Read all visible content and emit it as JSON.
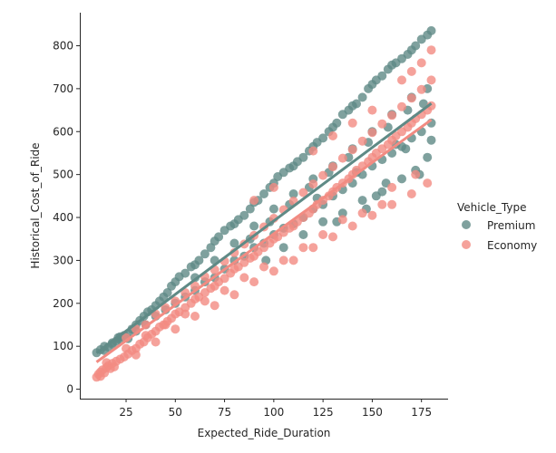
{
  "chart_data": {
    "type": "scatter",
    "title": "",
    "xlabel": "Expected_Ride_Duration",
    "ylabel": "Historical_Cost_of_Ride",
    "xlim": [
      1.5,
      188.5
    ],
    "ylim": [
      -22,
      877
    ],
    "xticks": [
      25,
      50,
      75,
      100,
      125,
      150,
      175
    ],
    "yticks": [
      0,
      100,
      200,
      300,
      400,
      500,
      600,
      700,
      800
    ],
    "grid": false,
    "legend": {
      "title": "Vehicle_Type",
      "placement": "center-right"
    },
    "series": [
      {
        "name": "Premium",
        "color": "#5f8a86",
        "regression": {
          "slope": 3.42,
          "intercept": 50
        },
        "points": [
          [
            10,
            85
          ],
          [
            12,
            92
          ],
          [
            14,
            100
          ],
          [
            16,
            98
          ],
          [
            18,
            108
          ],
          [
            20,
            112
          ],
          [
            21,
            120
          ],
          [
            22,
            115
          ],
          [
            24,
            125
          ],
          [
            26,
            130
          ],
          [
            28,
            140
          ],
          [
            30,
            150
          ],
          [
            32,
            160
          ],
          [
            34,
            170
          ],
          [
            36,
            180
          ],
          [
            38,
            185
          ],
          [
            40,
            195
          ],
          [
            42,
            205
          ],
          [
            44,
            215
          ],
          [
            46,
            225
          ],
          [
            48,
            240
          ],
          [
            50,
            250
          ],
          [
            52,
            262
          ],
          [
            55,
            270
          ],
          [
            58,
            285
          ],
          [
            60,
            290
          ],
          [
            62,
            300
          ],
          [
            65,
            315
          ],
          [
            68,
            330
          ],
          [
            70,
            345
          ],
          [
            72,
            355
          ],
          [
            75,
            370
          ],
          [
            78,
            380
          ],
          [
            80,
            385
          ],
          [
            82,
            395
          ],
          [
            85,
            405
          ],
          [
            88,
            420
          ],
          [
            90,
            435
          ],
          [
            92,
            440
          ],
          [
            95,
            455
          ],
          [
            98,
            470
          ],
          [
            100,
            480
          ],
          [
            102,
            495
          ],
          [
            105,
            505
          ],
          [
            108,
            515
          ],
          [
            110,
            520
          ],
          [
            112,
            530
          ],
          [
            115,
            540
          ],
          [
            118,
            555
          ],
          [
            120,
            565
          ],
          [
            122,
            575
          ],
          [
            125,
            585
          ],
          [
            128,
            600
          ],
          [
            130,
            610
          ],
          [
            132,
            620
          ],
          [
            135,
            640
          ],
          [
            138,
            650
          ],
          [
            140,
            660
          ],
          [
            142,
            665
          ],
          [
            145,
            680
          ],
          [
            148,
            700
          ],
          [
            150,
            710
          ],
          [
            152,
            720
          ],
          [
            155,
            730
          ],
          [
            158,
            745
          ],
          [
            160,
            755
          ],
          [
            162,
            760
          ],
          [
            165,
            770
          ],
          [
            168,
            780
          ],
          [
            170,
            790
          ],
          [
            172,
            800
          ],
          [
            175,
            815
          ],
          [
            178,
            825
          ],
          [
            180,
            835
          ],
          [
            14,
            90
          ],
          [
            18,
            105
          ],
          [
            22,
            122
          ],
          [
            26,
            118
          ],
          [
            30,
            135
          ],
          [
            35,
            150
          ],
          [
            40,
            170
          ],
          [
            45,
            185
          ],
          [
            50,
            200
          ],
          [
            55,
            215
          ],
          [
            60,
            230
          ],
          [
            65,
            250
          ],
          [
            70,
            260
          ],
          [
            75,
            280
          ],
          [
            80,
            300
          ],
          [
            85,
            310
          ],
          [
            90,
            330
          ],
          [
            95,
            340
          ],
          [
            100,
            360
          ],
          [
            105,
            375
          ],
          [
            110,
            385
          ],
          [
            115,
            400
          ],
          [
            120,
            420
          ],
          [
            125,
            430
          ],
          [
            130,
            450
          ],
          [
            135,
            465
          ],
          [
            140,
            480
          ],
          [
            145,
            500
          ],
          [
            150,
            520
          ],
          [
            155,
            535
          ],
          [
            160,
            550
          ],
          [
            165,
            565
          ],
          [
            170,
            585
          ],
          [
            175,
            600
          ],
          [
            180,
            620
          ],
          [
            60,
            260
          ],
          [
            70,
            300
          ],
          [
            80,
            340
          ],
          [
            90,
            380
          ],
          [
            100,
            420
          ],
          [
            110,
            455
          ],
          [
            120,
            490
          ],
          [
            130,
            520
          ],
          [
            140,
            560
          ],
          [
            150,
            600
          ],
          [
            160,
            640
          ],
          [
            170,
            680
          ],
          [
            178,
            700
          ],
          [
            96,
            300
          ],
          [
            105,
            330
          ],
          [
            115,
            360
          ],
          [
            125,
            390
          ],
          [
            135,
            410
          ],
          [
            145,
            440
          ],
          [
            155,
            460
          ],
          [
            165,
            490
          ],
          [
            172,
            510
          ],
          [
            178,
            540
          ],
          [
            88,
            350
          ],
          [
            98,
            390
          ],
          [
            108,
            430
          ],
          [
            118,
            470
          ],
          [
            128,
            505
          ],
          [
            138,
            540
          ],
          [
            148,
            575
          ],
          [
            158,
            610
          ],
          [
            168,
            650
          ],
          [
            176,
            665
          ],
          [
            122,
            445
          ],
          [
            142,
            505
          ],
          [
            162,
            570
          ],
          [
            152,
            450
          ],
          [
            167,
            560
          ],
          [
            174,
            500
          ],
          [
            180,
            580
          ],
          [
            132,
            390
          ],
          [
            147,
            420
          ],
          [
            157,
            480
          ]
        ]
      },
      {
        "name": "Economy",
        "color": "#f28b82",
        "regression": {
          "slope": 3.32,
          "intercept": 30
        },
        "points": [
          [
            10,
            28
          ],
          [
            11,
            35
          ],
          [
            12,
            40
          ],
          [
            13,
            45
          ],
          [
            14,
            38
          ],
          [
            15,
            50
          ],
          [
            16,
            55
          ],
          [
            17,
            48
          ],
          [
            18,
            60
          ],
          [
            19,
            52
          ],
          [
            20,
            65
          ],
          [
            22,
            70
          ],
          [
            24,
            75
          ],
          [
            26,
            82
          ],
          [
            28,
            90
          ],
          [
            30,
            95
          ],
          [
            32,
            105
          ],
          [
            34,
            110
          ],
          [
            36,
            120
          ],
          [
            38,
            128
          ],
          [
            40,
            135
          ],
          [
            42,
            145
          ],
          [
            44,
            150
          ],
          [
            46,
            158
          ],
          [
            48,
            165
          ],
          [
            50,
            175
          ],
          [
            52,
            180
          ],
          [
            55,
            190
          ],
          [
            58,
            200
          ],
          [
            60,
            210
          ],
          [
            62,
            215
          ],
          [
            65,
            225
          ],
          [
            68,
            235
          ],
          [
            70,
            240
          ],
          [
            72,
            250
          ],
          [
            75,
            258
          ],
          [
            78,
            270
          ],
          [
            80,
            280
          ],
          [
            82,
            285
          ],
          [
            85,
            295
          ],
          [
            88,
            305
          ],
          [
            90,
            310
          ],
          [
            92,
            320
          ],
          [
            95,
            330
          ],
          [
            98,
            340
          ],
          [
            100,
            350
          ],
          [
            102,
            355
          ],
          [
            105,
            365
          ],
          [
            108,
            375
          ],
          [
            110,
            380
          ],
          [
            112,
            390
          ],
          [
            115,
            400
          ],
          [
            118,
            410
          ],
          [
            120,
            420
          ],
          [
            122,
            430
          ],
          [
            125,
            440
          ],
          [
            128,
            450
          ],
          [
            130,
            460
          ],
          [
            132,
            470
          ],
          [
            135,
            480
          ],
          [
            138,
            490
          ],
          [
            140,
            500
          ],
          [
            142,
            510
          ],
          [
            145,
            520
          ],
          [
            148,
            530
          ],
          [
            150,
            540
          ],
          [
            152,
            550
          ],
          [
            155,
            560
          ],
          [
            158,
            570
          ],
          [
            160,
            580
          ],
          [
            162,
            590
          ],
          [
            165,
            600
          ],
          [
            168,
            610
          ],
          [
            170,
            620
          ],
          [
            172,
            630
          ],
          [
            175,
            640
          ],
          [
            178,
            650
          ],
          [
            180,
            660
          ],
          [
            25,
            120
          ],
          [
            30,
            140
          ],
          [
            35,
            150
          ],
          [
            40,
            175
          ],
          [
            45,
            190
          ],
          [
            50,
            205
          ],
          [
            55,
            225
          ],
          [
            60,
            240
          ],
          [
            65,
            262
          ],
          [
            70,
            278
          ],
          [
            75,
            298
          ],
          [
            80,
            318
          ],
          [
            85,
            338
          ],
          [
            90,
            358
          ],
          [
            95,
            378
          ],
          [
            100,
            398
          ],
          [
            105,
            418
          ],
          [
            110,
            438
          ],
          [
            115,
            458
          ],
          [
            120,
            478
          ],
          [
            125,
            498
          ],
          [
            130,
            518
          ],
          [
            135,
            538
          ],
          [
            140,
            558
          ],
          [
            145,
            578
          ],
          [
            150,
            598
          ],
          [
            155,
            618
          ],
          [
            160,
            638
          ],
          [
            165,
            658
          ],
          [
            170,
            678
          ],
          [
            175,
            698
          ],
          [
            180,
            720
          ],
          [
            30,
            80
          ],
          [
            40,
            110
          ],
          [
            50,
            140
          ],
          [
            60,
            170
          ],
          [
            70,
            195
          ],
          [
            80,
            220
          ],
          [
            90,
            250
          ],
          [
            100,
            275
          ],
          [
            110,
            300
          ],
          [
            120,
            330
          ],
          [
            130,
            355
          ],
          [
            140,
            380
          ],
          [
            150,
            405
          ],
          [
            160,
            430
          ],
          [
            170,
            455
          ],
          [
            178,
            480
          ],
          [
            165,
            720
          ],
          [
            170,
            740
          ],
          [
            175,
            760
          ],
          [
            180,
            790
          ],
          [
            150,
            650
          ],
          [
            140,
            620
          ],
          [
            130,
            590
          ],
          [
            120,
            555
          ],
          [
            100,
            470
          ],
          [
            90,
            440
          ],
          [
            160,
            470
          ],
          [
            172,
            500
          ],
          [
            155,
            430
          ],
          [
            145,
            410
          ],
          [
            135,
            395
          ],
          [
            125,
            360
          ],
          [
            115,
            330
          ],
          [
            105,
            300
          ],
          [
            95,
            285
          ],
          [
            85,
            260
          ],
          [
            75,
            230
          ],
          [
            65,
            205
          ],
          [
            55,
            175
          ],
          [
            45,
            150
          ],
          [
            35,
            125
          ],
          [
            25,
            95
          ],
          [
            15,
            62
          ],
          [
            12,
            30
          ]
        ]
      }
    ]
  }
}
